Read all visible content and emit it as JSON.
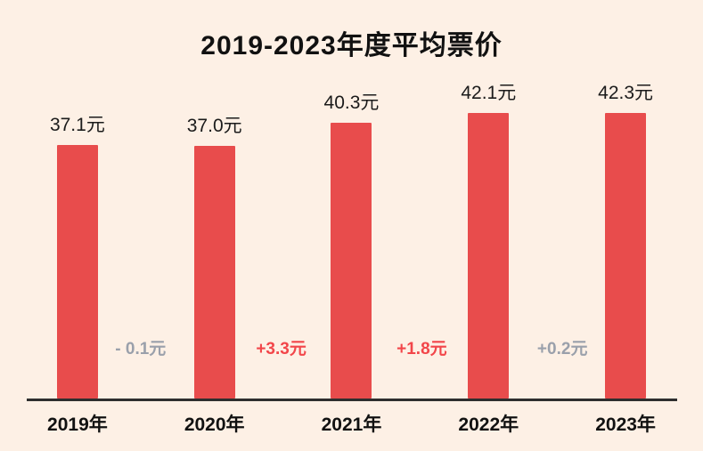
{
  "title": "2019-2023年度平均票价",
  "chart_data": {
    "type": "bar",
    "title": "2019-2023年度平均票价",
    "xlabel": "",
    "ylabel": "",
    "ylim": [
      0,
      46
    ],
    "grid": false,
    "legend": "none",
    "categories": [
      "2019年",
      "2020年",
      "2021年",
      "2022年",
      "2023年"
    ],
    "values": [
      37.1,
      37.0,
      40.3,
      42.1,
      42.3
    ],
    "value_labels": [
      "37.1元",
      "37.0元",
      "40.3元",
      "42.1元",
      "42.3元"
    ],
    "changes": [
      {
        "label": "- 0.1元",
        "color": "#9aa0ab"
      },
      {
        "label": "+3.3元",
        "color": "#f2464a"
      },
      {
        "label": "+1.8元",
        "color": "#f2464a"
      },
      {
        "label": "+0.2元",
        "color": "#9aa0ab"
      }
    ],
    "bar_color": "#e84c4c",
    "background_color": "#fdf0e5",
    "axis_line_color": "#2e2e2e"
  }
}
